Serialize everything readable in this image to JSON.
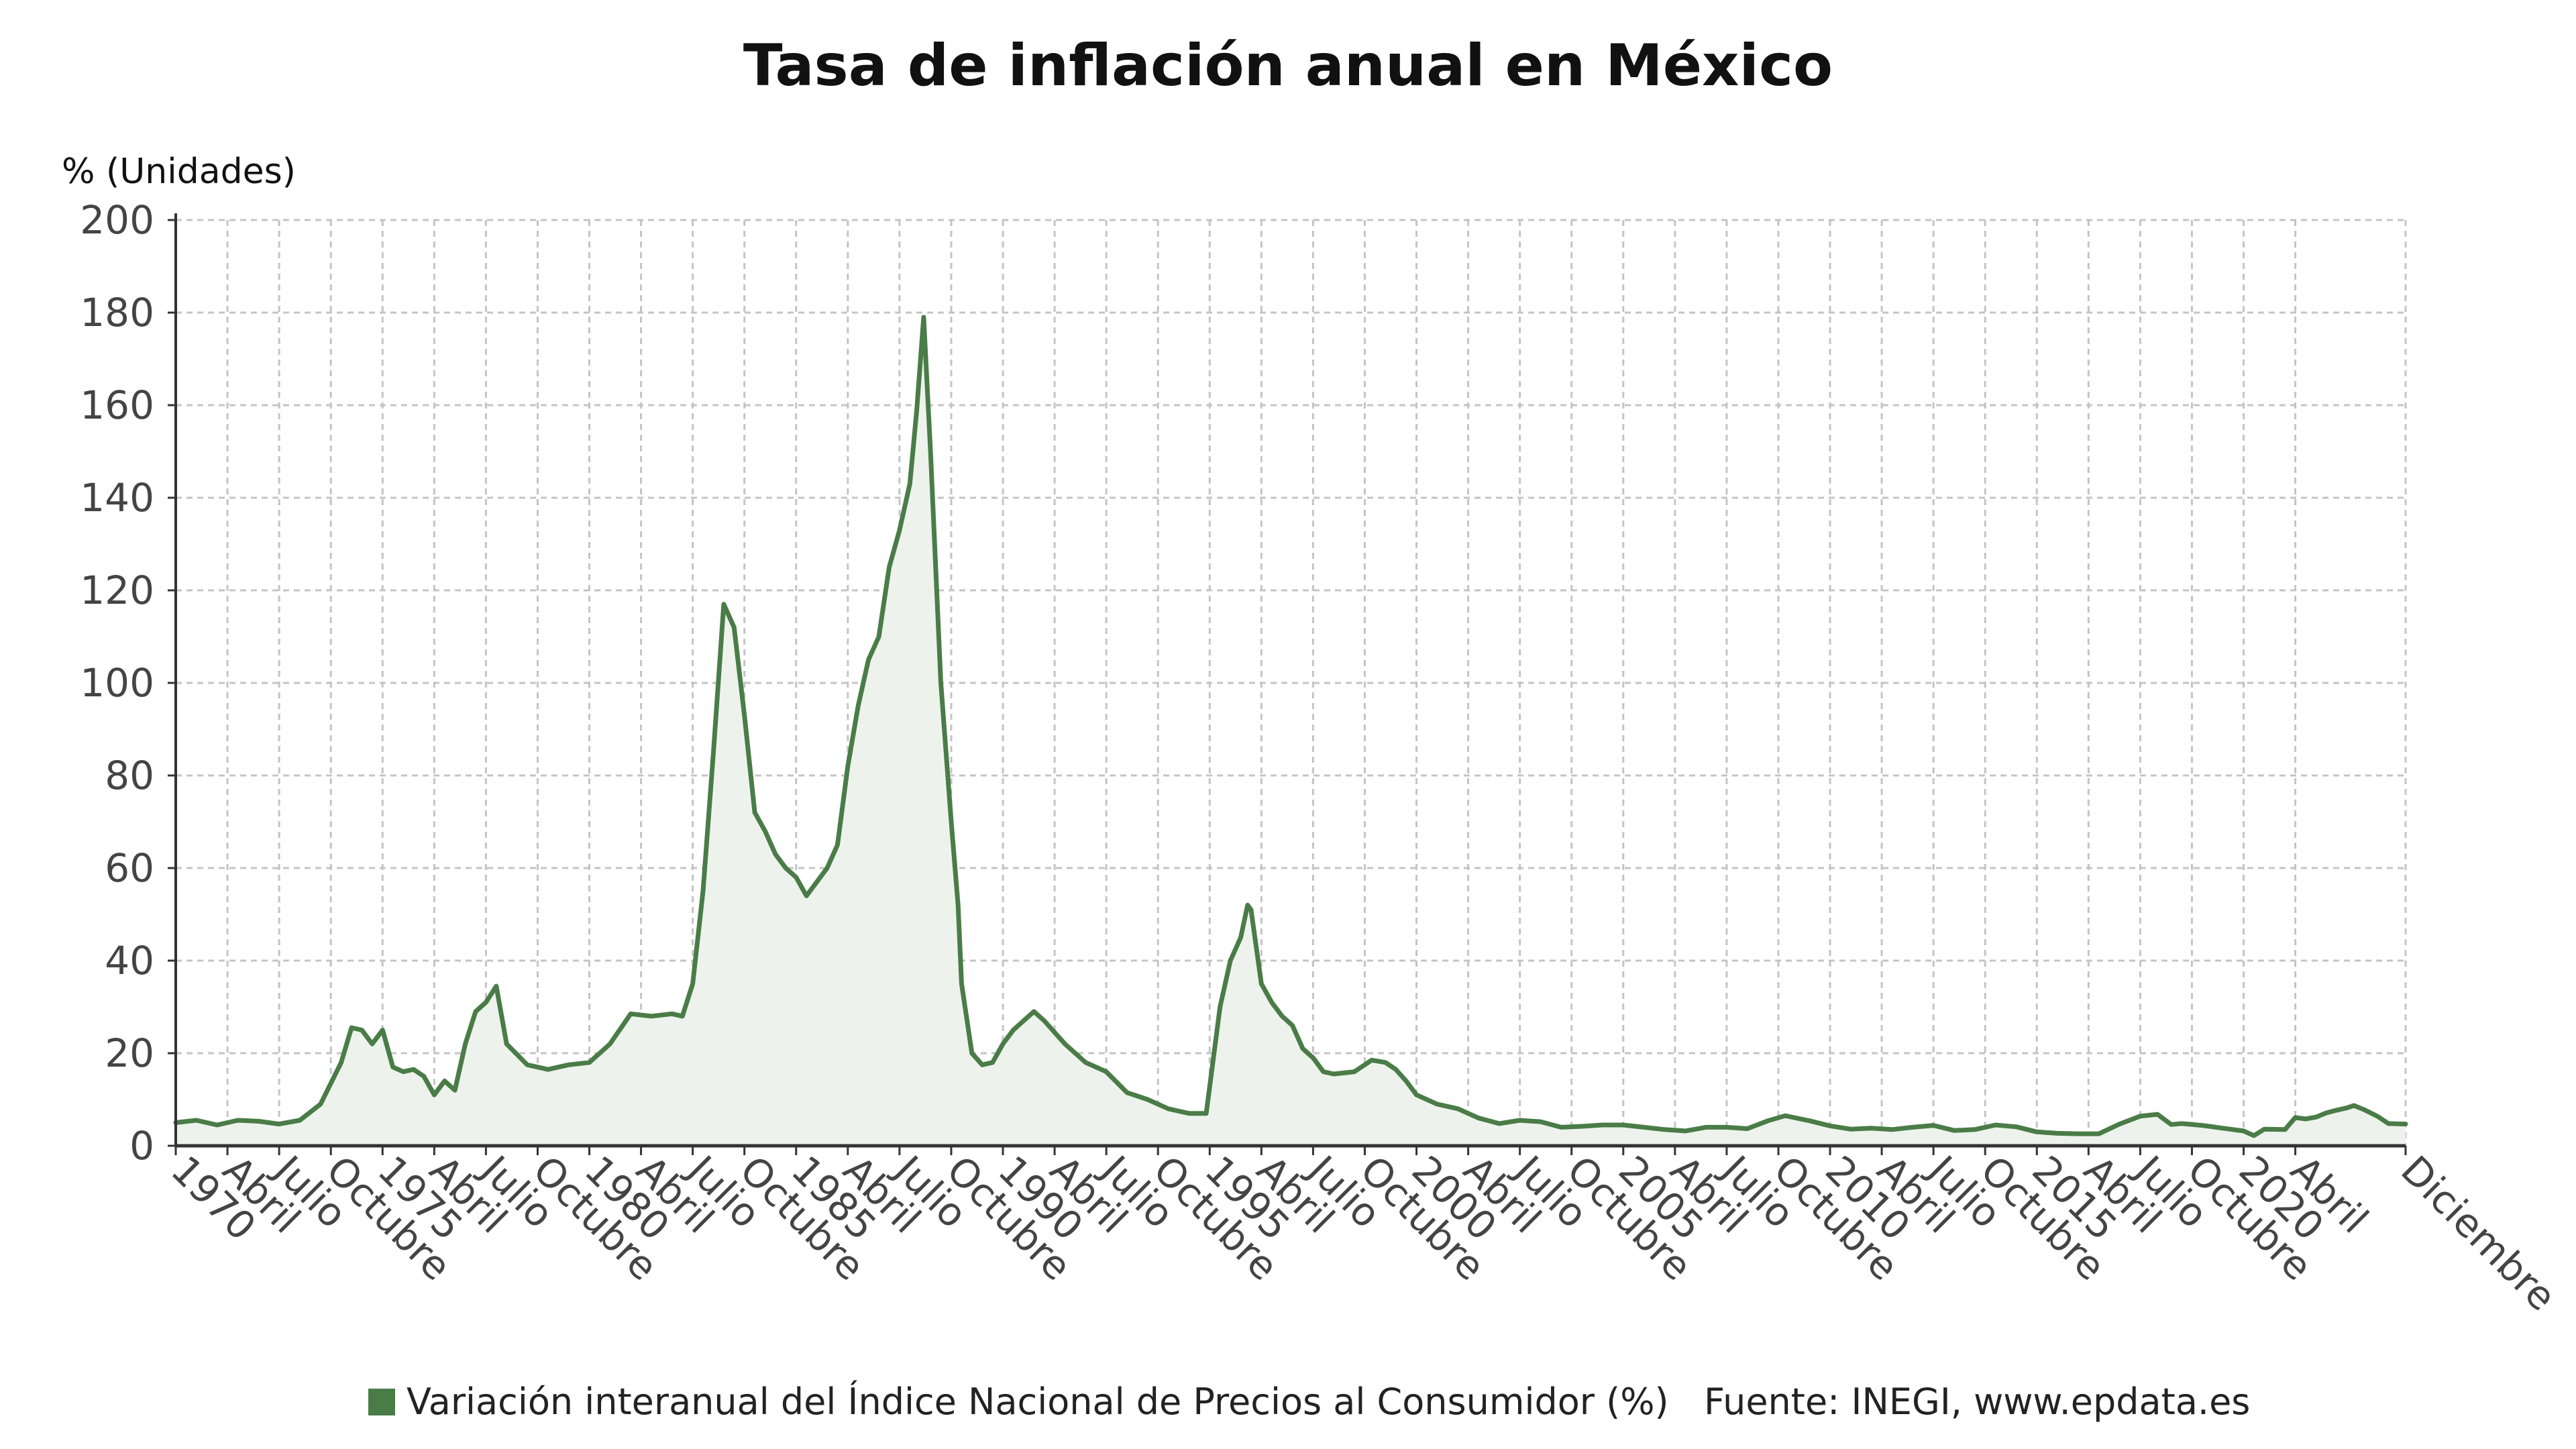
{
  "chart_data": {
    "type": "area",
    "title": "Tasa de inflación anual en México",
    "ylabel": "% (Unidades)",
    "xlabel": "",
    "ylim": [
      0,
      200
    ],
    "y_ticks": [
      0,
      20,
      40,
      60,
      80,
      100,
      120,
      140,
      160,
      180,
      200
    ],
    "grid": true,
    "x_range": [
      "1970-01",
      "2023-12"
    ],
    "x_tick_labels": [
      {
        "date": "1970-01",
        "label": "1970"
      },
      {
        "date": "1971-04",
        "label": "Abril"
      },
      {
        "date": "1972-07",
        "label": "Julio"
      },
      {
        "date": "1973-10",
        "label": "Octubre"
      },
      {
        "date": "1975-01",
        "label": "1975"
      },
      {
        "date": "1976-04",
        "label": "Abril"
      },
      {
        "date": "1977-07",
        "label": "Julio"
      },
      {
        "date": "1978-10",
        "label": "Octubre"
      },
      {
        "date": "1980-01",
        "label": "1980"
      },
      {
        "date": "1981-04",
        "label": "Abril"
      },
      {
        "date": "1982-07",
        "label": "Julio"
      },
      {
        "date": "1983-10",
        "label": "Octubre"
      },
      {
        "date": "1985-01",
        "label": "1985"
      },
      {
        "date": "1986-04",
        "label": "Abril"
      },
      {
        "date": "1987-07",
        "label": "Julio"
      },
      {
        "date": "1988-10",
        "label": "Octubre"
      },
      {
        "date": "1990-01",
        "label": "1990"
      },
      {
        "date": "1991-04",
        "label": "Abril"
      },
      {
        "date": "1992-07",
        "label": "Julio"
      },
      {
        "date": "1993-10",
        "label": "Octubre"
      },
      {
        "date": "1995-01",
        "label": "1995"
      },
      {
        "date": "1996-04",
        "label": "Abril"
      },
      {
        "date": "1997-07",
        "label": "Julio"
      },
      {
        "date": "1998-10",
        "label": "Octubre"
      },
      {
        "date": "2000-01",
        "label": "2000"
      },
      {
        "date": "2001-04",
        "label": "Abril"
      },
      {
        "date": "2002-07",
        "label": "Julio"
      },
      {
        "date": "2003-10",
        "label": "Octubre"
      },
      {
        "date": "2005-01",
        "label": "2005"
      },
      {
        "date": "2006-04",
        "label": "Abril"
      },
      {
        "date": "2007-07",
        "label": "Julio"
      },
      {
        "date": "2008-10",
        "label": "Octubre"
      },
      {
        "date": "2010-01",
        "label": "2010"
      },
      {
        "date": "2011-04",
        "label": "Abril"
      },
      {
        "date": "2012-07",
        "label": "Julio"
      },
      {
        "date": "2013-10",
        "label": "Octubre"
      },
      {
        "date": "2015-01",
        "label": "2015"
      },
      {
        "date": "2016-04",
        "label": "Abril"
      },
      {
        "date": "2017-07",
        "label": "Julio"
      },
      {
        "date": "2018-10",
        "label": "Octubre"
      },
      {
        "date": "2020-01",
        "label": "2020"
      },
      {
        "date": "2021-04",
        "label": "Abril"
      },
      {
        "date": "2023-12",
        "label": "Diciembre"
      }
    ],
    "series": [
      {
        "name": "Variación interanual del Índice Nacional de Precios al Consumidor (%)",
        "color": "#4a7c47",
        "fill": "#edf3ec",
        "points": [
          {
            "x": "1970-01",
            "y": 5.0
          },
          {
            "x": "1970-07",
            "y": 5.5
          },
          {
            "x": "1971-01",
            "y": 4.5
          },
          {
            "x": "1971-07",
            "y": 5.5
          },
          {
            "x": "1972-01",
            "y": 5.3
          },
          {
            "x": "1972-07",
            "y": 4.7
          },
          {
            "x": "1973-01",
            "y": 5.5
          },
          {
            "x": "1973-07",
            "y": 9.0
          },
          {
            "x": "1974-01",
            "y": 18.0
          },
          {
            "x": "1974-04",
            "y": 25.5
          },
          {
            "x": "1974-07",
            "y": 25.0
          },
          {
            "x": "1974-10",
            "y": 22.0
          },
          {
            "x": "1975-01",
            "y": 25.0
          },
          {
            "x": "1975-04",
            "y": 17.0
          },
          {
            "x": "1975-07",
            "y": 16.0
          },
          {
            "x": "1975-10",
            "y": 16.5
          },
          {
            "x": "1976-01",
            "y": 15.0
          },
          {
            "x": "1976-04",
            "y": 11.0
          },
          {
            "x": "1976-07",
            "y": 14.0
          },
          {
            "x": "1976-10",
            "y": 12.0
          },
          {
            "x": "1977-01",
            "y": 22.0
          },
          {
            "x": "1977-04",
            "y": 29.0
          },
          {
            "x": "1977-07",
            "y": 31.0
          },
          {
            "x": "1977-10",
            "y": 34.5
          },
          {
            "x": "1978-01",
            "y": 22.0
          },
          {
            "x": "1978-07",
            "y": 17.5
          },
          {
            "x": "1979-01",
            "y": 16.5
          },
          {
            "x": "1979-07",
            "y": 17.5
          },
          {
            "x": "1980-01",
            "y": 18.0
          },
          {
            "x": "1980-07",
            "y": 22.0
          },
          {
            "x": "1981-01",
            "y": 28.5
          },
          {
            "x": "1981-07",
            "y": 28.0
          },
          {
            "x": "1982-01",
            "y": 28.5
          },
          {
            "x": "1982-04",
            "y": 28.0
          },
          {
            "x": "1982-07",
            "y": 35.0
          },
          {
            "x": "1982-10",
            "y": 55.0
          },
          {
            "x": "1983-01",
            "y": 85.0
          },
          {
            "x": "1983-04",
            "y": 117.0
          },
          {
            "x": "1983-07",
            "y": 112.0
          },
          {
            "x": "1983-10",
            "y": 93.0
          },
          {
            "x": "1984-01",
            "y": 72.0
          },
          {
            "x": "1984-04",
            "y": 68.0
          },
          {
            "x": "1984-07",
            "y": 63.0
          },
          {
            "x": "1984-10",
            "y": 60.0
          },
          {
            "x": "1985-01",
            "y": 58.0
          },
          {
            "x": "1985-04",
            "y": 54.0
          },
          {
            "x": "1985-07",
            "y": 57.0
          },
          {
            "x": "1985-10",
            "y": 60.0
          },
          {
            "x": "1986-01",
            "y": 65.0
          },
          {
            "x": "1986-04",
            "y": 82.0
          },
          {
            "x": "1986-07",
            "y": 95.0
          },
          {
            "x": "1986-10",
            "y": 105.0
          },
          {
            "x": "1987-01",
            "y": 110.0
          },
          {
            "x": "1987-04",
            "y": 125.0
          },
          {
            "x": "1987-07",
            "y": 133.0
          },
          {
            "x": "1987-10",
            "y": 143.0
          },
          {
            "x": "1987-12",
            "y": 159.0
          },
          {
            "x": "1988-02",
            "y": 179.0
          },
          {
            "x": "1988-04",
            "y": 150.0
          },
          {
            "x": "1988-07",
            "y": 100.0
          },
          {
            "x": "1988-10",
            "y": 70.0
          },
          {
            "x": "1988-12",
            "y": 52.0
          },
          {
            "x": "1989-01",
            "y": 35.0
          },
          {
            "x": "1989-04",
            "y": 20.0
          },
          {
            "x": "1989-07",
            "y": 17.5
          },
          {
            "x": "1989-10",
            "y": 18.0
          },
          {
            "x": "1990-01",
            "y": 22.0
          },
          {
            "x": "1990-04",
            "y": 25.0
          },
          {
            "x": "1990-07",
            "y": 27.0
          },
          {
            "x": "1990-10",
            "y": 29.0
          },
          {
            "x": "1991-01",
            "y": 27.0
          },
          {
            "x": "1991-07",
            "y": 22.0
          },
          {
            "x": "1992-01",
            "y": 18.0
          },
          {
            "x": "1992-07",
            "y": 16.0
          },
          {
            "x": "1993-01",
            "y": 11.5
          },
          {
            "x": "1993-07",
            "y": 10.0
          },
          {
            "x": "1994-01",
            "y": 8.0
          },
          {
            "x": "1994-07",
            "y": 7.0
          },
          {
            "x": "1994-12",
            "y": 7.0
          },
          {
            "x": "1995-04",
            "y": 30.0
          },
          {
            "x": "1995-07",
            "y": 40.0
          },
          {
            "x": "1995-10",
            "y": 45.0
          },
          {
            "x": "1995-12",
            "y": 52.0
          },
          {
            "x": "1996-01",
            "y": 51.0
          },
          {
            "x": "1996-04",
            "y": 35.0
          },
          {
            "x": "1996-07",
            "y": 31.0
          },
          {
            "x": "1996-10",
            "y": 28.0
          },
          {
            "x": "1997-01",
            "y": 26.0
          },
          {
            "x": "1997-04",
            "y": 21.0
          },
          {
            "x": "1997-07",
            "y": 19.0
          },
          {
            "x": "1997-10",
            "y": 16.0
          },
          {
            "x": "1998-01",
            "y": 15.5
          },
          {
            "x": "1998-07",
            "y": 16.0
          },
          {
            "x": "1998-12",
            "y": 18.5
          },
          {
            "x": "1999-04",
            "y": 18.0
          },
          {
            "x": "1999-07",
            "y": 16.5
          },
          {
            "x": "1999-10",
            "y": 14.0
          },
          {
            "x": "2000-01",
            "y": 11.0
          },
          {
            "x": "2000-07",
            "y": 9.0
          },
          {
            "x": "2001-01",
            "y": 8.0
          },
          {
            "x": "2001-07",
            "y": 6.0
          },
          {
            "x": "2002-01",
            "y": 4.8
          },
          {
            "x": "2002-07",
            "y": 5.5
          },
          {
            "x": "2003-01",
            "y": 5.2
          },
          {
            "x": "2003-07",
            "y": 4.0
          },
          {
            "x": "2004-01",
            "y": 4.2
          },
          {
            "x": "2004-07",
            "y": 4.5
          },
          {
            "x": "2005-01",
            "y": 4.5
          },
          {
            "x": "2005-07",
            "y": 4.0
          },
          {
            "x": "2006-01",
            "y": 3.5
          },
          {
            "x": "2006-07",
            "y": 3.2
          },
          {
            "x": "2007-01",
            "y": 4.0
          },
          {
            "x": "2007-07",
            "y": 4.0
          },
          {
            "x": "2008-01",
            "y": 3.7
          },
          {
            "x": "2008-07",
            "y": 5.4
          },
          {
            "x": "2008-12",
            "y": 6.5
          },
          {
            "x": "2009-07",
            "y": 5.4
          },
          {
            "x": "2010-01",
            "y": 4.3
          },
          {
            "x": "2010-07",
            "y": 3.6
          },
          {
            "x": "2011-01",
            "y": 3.8
          },
          {
            "x": "2011-07",
            "y": 3.5
          },
          {
            "x": "2012-01",
            "y": 4.0
          },
          {
            "x": "2012-07",
            "y": 4.4
          },
          {
            "x": "2013-01",
            "y": 3.3
          },
          {
            "x": "2013-07",
            "y": 3.5
          },
          {
            "x": "2014-01",
            "y": 4.5
          },
          {
            "x": "2014-07",
            "y": 4.1
          },
          {
            "x": "2015-01",
            "y": 3.0
          },
          {
            "x": "2015-07",
            "y": 2.7
          },
          {
            "x": "2016-01",
            "y": 2.6
          },
          {
            "x": "2016-07",
            "y": 2.6
          },
          {
            "x": "2017-01",
            "y": 4.7
          },
          {
            "x": "2017-07",
            "y": 6.4
          },
          {
            "x": "2017-12",
            "y": 6.8
          },
          {
            "x": "2018-04",
            "y": 4.6
          },
          {
            "x": "2018-07",
            "y": 4.8
          },
          {
            "x": "2019-01",
            "y": 4.4
          },
          {
            "x": "2019-07",
            "y": 3.8
          },
          {
            "x": "2020-01",
            "y": 3.2
          },
          {
            "x": "2020-04",
            "y": 2.2
          },
          {
            "x": "2020-07",
            "y": 3.6
          },
          {
            "x": "2021-01",
            "y": 3.5
          },
          {
            "x": "2021-04",
            "y": 6.1
          },
          {
            "x": "2021-07",
            "y": 5.8
          },
          {
            "x": "2021-10",
            "y": 6.2
          },
          {
            "x": "2022-01",
            "y": 7.1
          },
          {
            "x": "2022-04",
            "y": 7.7
          },
          {
            "x": "2022-07",
            "y": 8.2
          },
          {
            "x": "2022-09",
            "y": 8.7
          },
          {
            "x": "2022-12",
            "y": 7.8
          },
          {
            "x": "2023-04",
            "y": 6.3
          },
          {
            "x": "2023-07",
            "y": 4.8
          },
          {
            "x": "2023-12",
            "y": 4.7
          }
        ]
      }
    ]
  },
  "legend": {
    "label": "Variación interanual del Índice Nacional de Precios al Consumidor (%)",
    "placement": "bottom",
    "swatch_color": "#4a7c47"
  },
  "source": {
    "text": "Fuente: INEGI, www.epdata.es"
  }
}
